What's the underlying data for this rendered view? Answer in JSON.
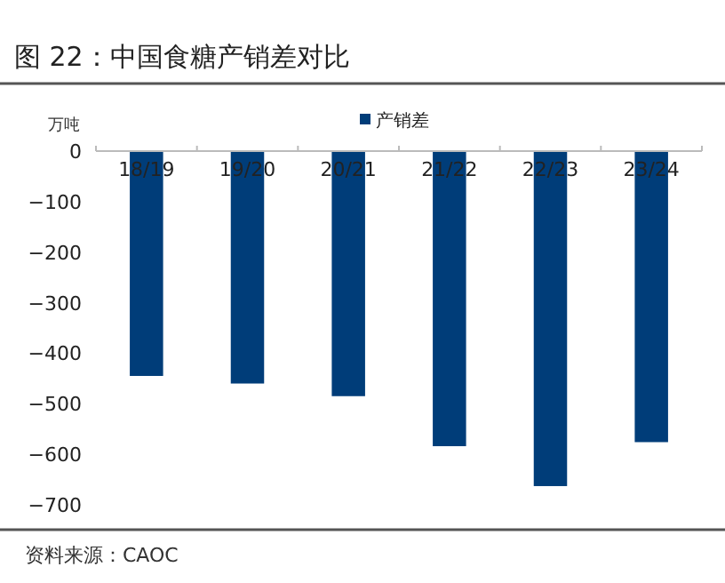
{
  "chart_data": {
    "type": "bar",
    "title": "图 22：中国食糖产销差对比",
    "ylabel": "万吨",
    "categories": [
      "18/19",
      "19/20",
      "20/21",
      "21/22",
      "22/23",
      "23/24"
    ],
    "series": [
      {
        "name": "产销差",
        "color": "#003d79",
        "values": [
          -445,
          -460,
          -485,
          -584,
          -663,
          -576
        ]
      }
    ],
    "ylim": [
      -700,
      0
    ],
    "yticks": [
      0,
      -100,
      -200,
      -300,
      -400,
      -500,
      -600,
      -700
    ],
    "legend": "top",
    "grid": false,
    "annotations": [
      "资料来源：CAOC"
    ]
  }
}
